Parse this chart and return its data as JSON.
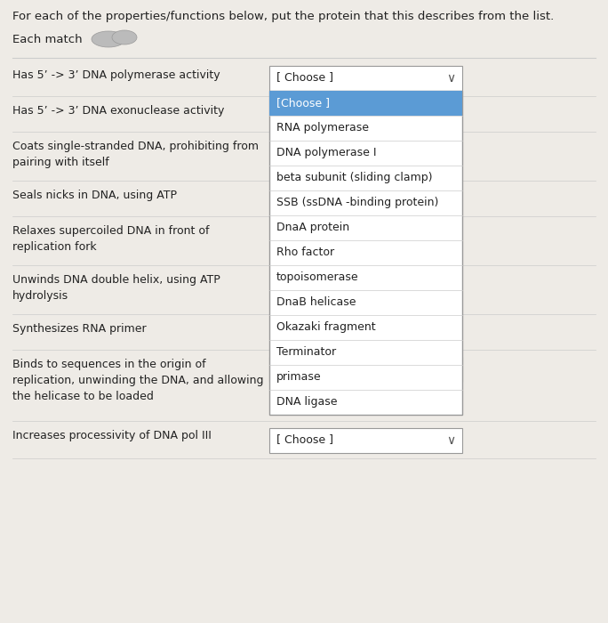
{
  "bg_color": "#eeebe6",
  "title": "For each of the properties/functions below, put the protein that this describes from the list.",
  "each_match_label": "Each match",
  "rows": [
    {
      "label": "Has 5’ -> 3’ DNA polymerase activity",
      "lines": 1
    },
    {
      "label": "Has 5’ -> 3’ DNA exonuclease activity",
      "lines": 1
    },
    {
      "label": "Coats single-stranded DNA, prohibiting from\npairing with itself",
      "lines": 2
    },
    {
      "label": "Seals nicks in DNA, using ATP",
      "lines": 1
    },
    {
      "label": "Relaxes supercoiled DNA in front of\nreplication fork",
      "lines": 2
    },
    {
      "label": "Unwinds DNA double helix, using ATP\nhydrolysis",
      "lines": 2
    },
    {
      "label": "Synthesizes RNA primer",
      "lines": 1
    },
    {
      "label": "Binds to sequences in the origin of\nreplication, unwinding the DNA, and allowing\nthe helicase to be loaded",
      "lines": 3
    },
    {
      "label": "Increases processivity of DNA pol III",
      "lines": 1
    }
  ],
  "dropdown_items": [
    "[Choose ]",
    "RNA polymerase",
    "DNA polymerase I",
    "beta subunit (sliding clamp)",
    "SSB (ssDNA -binding protein)",
    "DnaA protein",
    "Rho factor",
    "topoisomerase",
    "DnaB helicase",
    "Okazaki fragment",
    "Terminator",
    "primase",
    "DNA ligase"
  ],
  "white": "#ffffff",
  "highlight_color": "#5b9bd5",
  "border_color": "#999999",
  "divider_color": "#cccccc",
  "text_color": "#222222",
  "arrow_color": "#555555",
  "blob_color": "#bbbbbb",
  "font_size": 9.5,
  "small_font": 9.0
}
